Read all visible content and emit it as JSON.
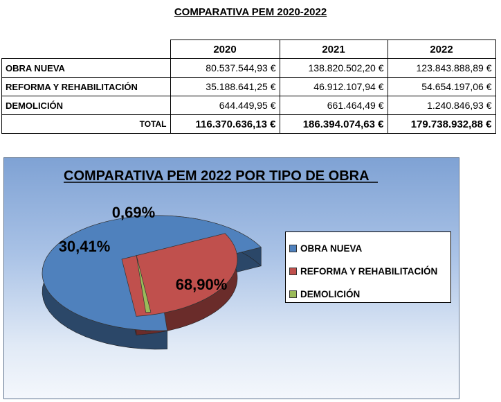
{
  "page_title": "COMPARATIVA PEM 2020-2022",
  "table": {
    "headers": [
      "2020",
      "2021",
      "2022"
    ],
    "rows": [
      {
        "label": "OBRA NUEVA",
        "values": [
          "80.537.544,93 €",
          "138.820.502,20 €",
          "123.843.888,89 €"
        ]
      },
      {
        "label": "REFORMA Y REHABILITACIÓN",
        "values": [
          "35.188.641,25 €",
          "46.912.107,94 €",
          "54.654.197,06 €"
        ]
      },
      {
        "label": "DEMOLICIÓN",
        "values": [
          "644.449,95 €",
          "661.464,49 €",
          "1.240.846,93 €"
        ]
      }
    ],
    "total": {
      "label": "TOTAL",
      "values": [
        "116.370.636,13 €",
        "186.394.074,63 €",
        "179.738.932,88 €"
      ]
    }
  },
  "chart_data": {
    "type": "pie",
    "title": "COMPARATIVA PEM 2022 POR TIPO DE OBRA",
    "style": "3d-exploded",
    "slices": [
      {
        "label": "OBRA NUEVA",
        "value": 68.9,
        "display": "68,90%",
        "color": "#4f81bd"
      },
      {
        "label": "REFORMA Y REHABILITACIÓN",
        "value": 30.41,
        "display": "30,41%",
        "color": "#c0504d"
      },
      {
        "label": "DEMOLICIÓN",
        "value": 0.69,
        "display": "0,69%",
        "color": "#9bbb59"
      }
    ],
    "legend_position": "right"
  }
}
